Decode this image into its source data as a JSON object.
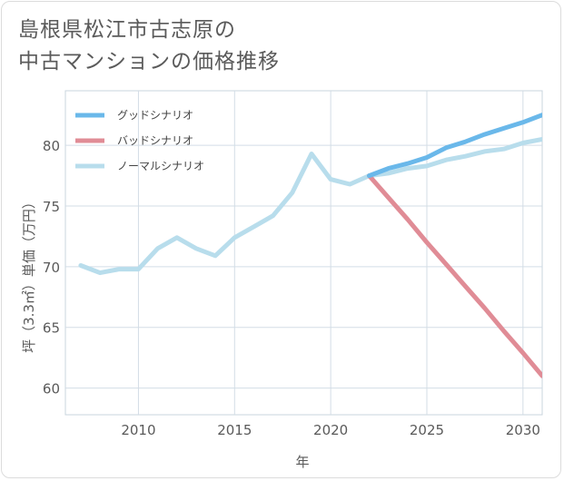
{
  "title_lines": [
    "島根県松江市古志原の",
    "中古マンションの価格推移"
  ],
  "chart_data": {
    "type": "line",
    "title": "島根県松江市古志原の中古マンションの価格推移",
    "xlabel": "年",
    "ylabel": "坪（3.3㎡）単価（万円）",
    "xlim": [
      2006.2,
      2031
    ],
    "ylim": [
      57.8,
      84.5
    ],
    "xticks": [
      2010,
      2015,
      2020,
      2025,
      2030
    ],
    "yticks": [
      60,
      65,
      70,
      75,
      80
    ],
    "grid": true,
    "legend_position": "top-left",
    "series": [
      {
        "name": "グッドシナリオ",
        "color": "#6ab8ea",
        "x": [
          2022,
          2023,
          2024,
          2025,
          2026,
          2027,
          2028,
          2029,
          2030,
          2031
        ],
        "y": [
          77.5,
          78.1,
          78.5,
          79.0,
          79.8,
          80.3,
          80.9,
          81.4,
          81.9,
          82.5
        ]
      },
      {
        "name": "バッドシナリオ",
        "color": "#e08c96",
        "x": [
          2022,
          2023,
          2024,
          2025,
          2026,
          2027,
          2028,
          2029,
          2030,
          2031
        ],
        "y": [
          77.5,
          75.7,
          73.9,
          72.0,
          70.2,
          68.4,
          66.6,
          64.7,
          62.9,
          61.0
        ]
      },
      {
        "name": "ノーマルシナリオ",
        "color": "#b8ddec",
        "x": [
          2007,
          2008,
          2009,
          2010,
          2011,
          2012,
          2013,
          2014,
          2015,
          2016,
          2017,
          2018,
          2019,
          2020,
          2021,
          2022,
          2023,
          2024,
          2025,
          2026,
          2027,
          2028,
          2029,
          2030,
          2031
        ],
        "y": [
          70.1,
          69.5,
          69.8,
          69.8,
          71.5,
          72.4,
          71.5,
          70.9,
          72.4,
          73.3,
          74.2,
          76.1,
          79.3,
          77.2,
          76.8,
          77.5,
          77.7,
          78.1,
          78.3,
          78.8,
          79.1,
          79.5,
          79.7,
          80.2,
          80.5
        ]
      }
    ]
  }
}
